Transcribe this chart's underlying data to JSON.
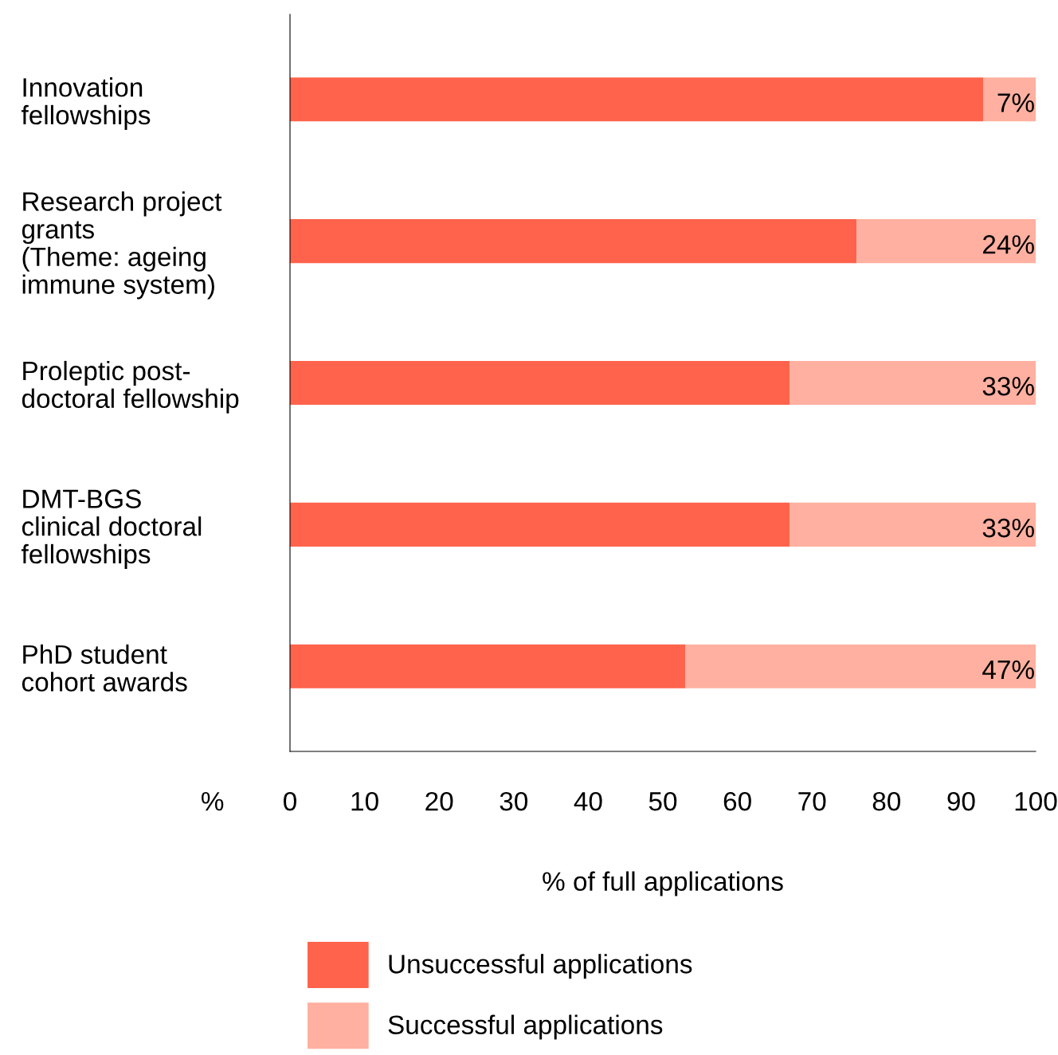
{
  "chart_data": {
    "type": "bar",
    "orientation": "horizontal",
    "stacked": true,
    "categories": [
      "Innovation\nfellowships",
      "Research project\ngrants\n(Theme: ageing\nimmune system)",
      "Proleptic post-\ndoctoral fellowship",
      "DMT-BGS\nclinical doctoral\nfellowships",
      "PhD student\ncohort awards"
    ],
    "series": [
      {
        "name": "Unsuccessful applications",
        "color": "#ff634c",
        "values": [
          93,
          76,
          67,
          67,
          53
        ]
      },
      {
        "name": "Successful applications",
        "color": "#ffb0a0",
        "values": [
          7,
          24,
          33,
          33,
          47
        ],
        "value_labels": [
          "7%",
          "24%",
          "33%",
          "33%",
          "47%"
        ]
      }
    ],
    "xlim": [
      0,
      100
    ],
    "xticks": [
      0,
      10,
      20,
      30,
      40,
      50,
      60,
      70,
      80,
      90,
      100
    ],
    "xlabel": "% of full applications",
    "annotations": [
      "%"
    ],
    "legend": "bottom",
    "grid": false
  }
}
